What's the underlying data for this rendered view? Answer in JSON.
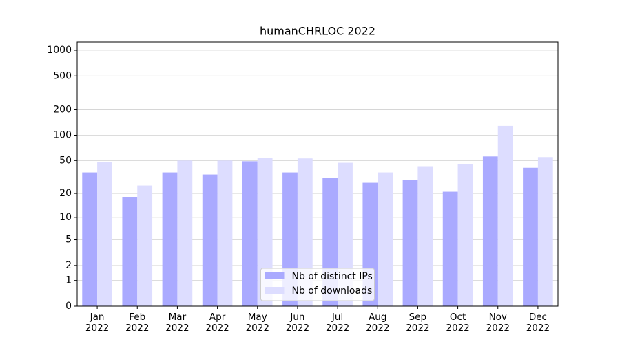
{
  "chart_data": {
    "type": "bar",
    "title": "humanCHRLOC 2022",
    "categories": [
      "Jan\n2022",
      "Feb\n2022",
      "Mar\n2022",
      "Apr\n2022",
      "May\n2022",
      "Jun\n2022",
      "Jul\n2022",
      "Aug\n2022",
      "Sep\n2022",
      "Oct\n2022",
      "Nov\n2022",
      "Dec\n2022"
    ],
    "series": [
      {
        "name": "Nb of distinct IPs",
        "color": "#aaaaff",
        "values": [
          36,
          18,
          36,
          34,
          49,
          36,
          31,
          27,
          29,
          21,
          56,
          41
        ]
      },
      {
        "name": "Nb of downloads",
        "color": "#ddddff",
        "values": [
          48,
          25,
          50,
          50,
          54,
          53,
          47,
          36,
          42,
          45,
          129,
          55
        ]
      }
    ],
    "yscale": "log1p",
    "ylim": [
      0,
      1250
    ],
    "yticks": [
      0,
      1,
      2,
      5,
      10,
      20,
      50,
      100,
      200,
      500,
      1000
    ],
    "grid": true,
    "legend": "lower center"
  }
}
